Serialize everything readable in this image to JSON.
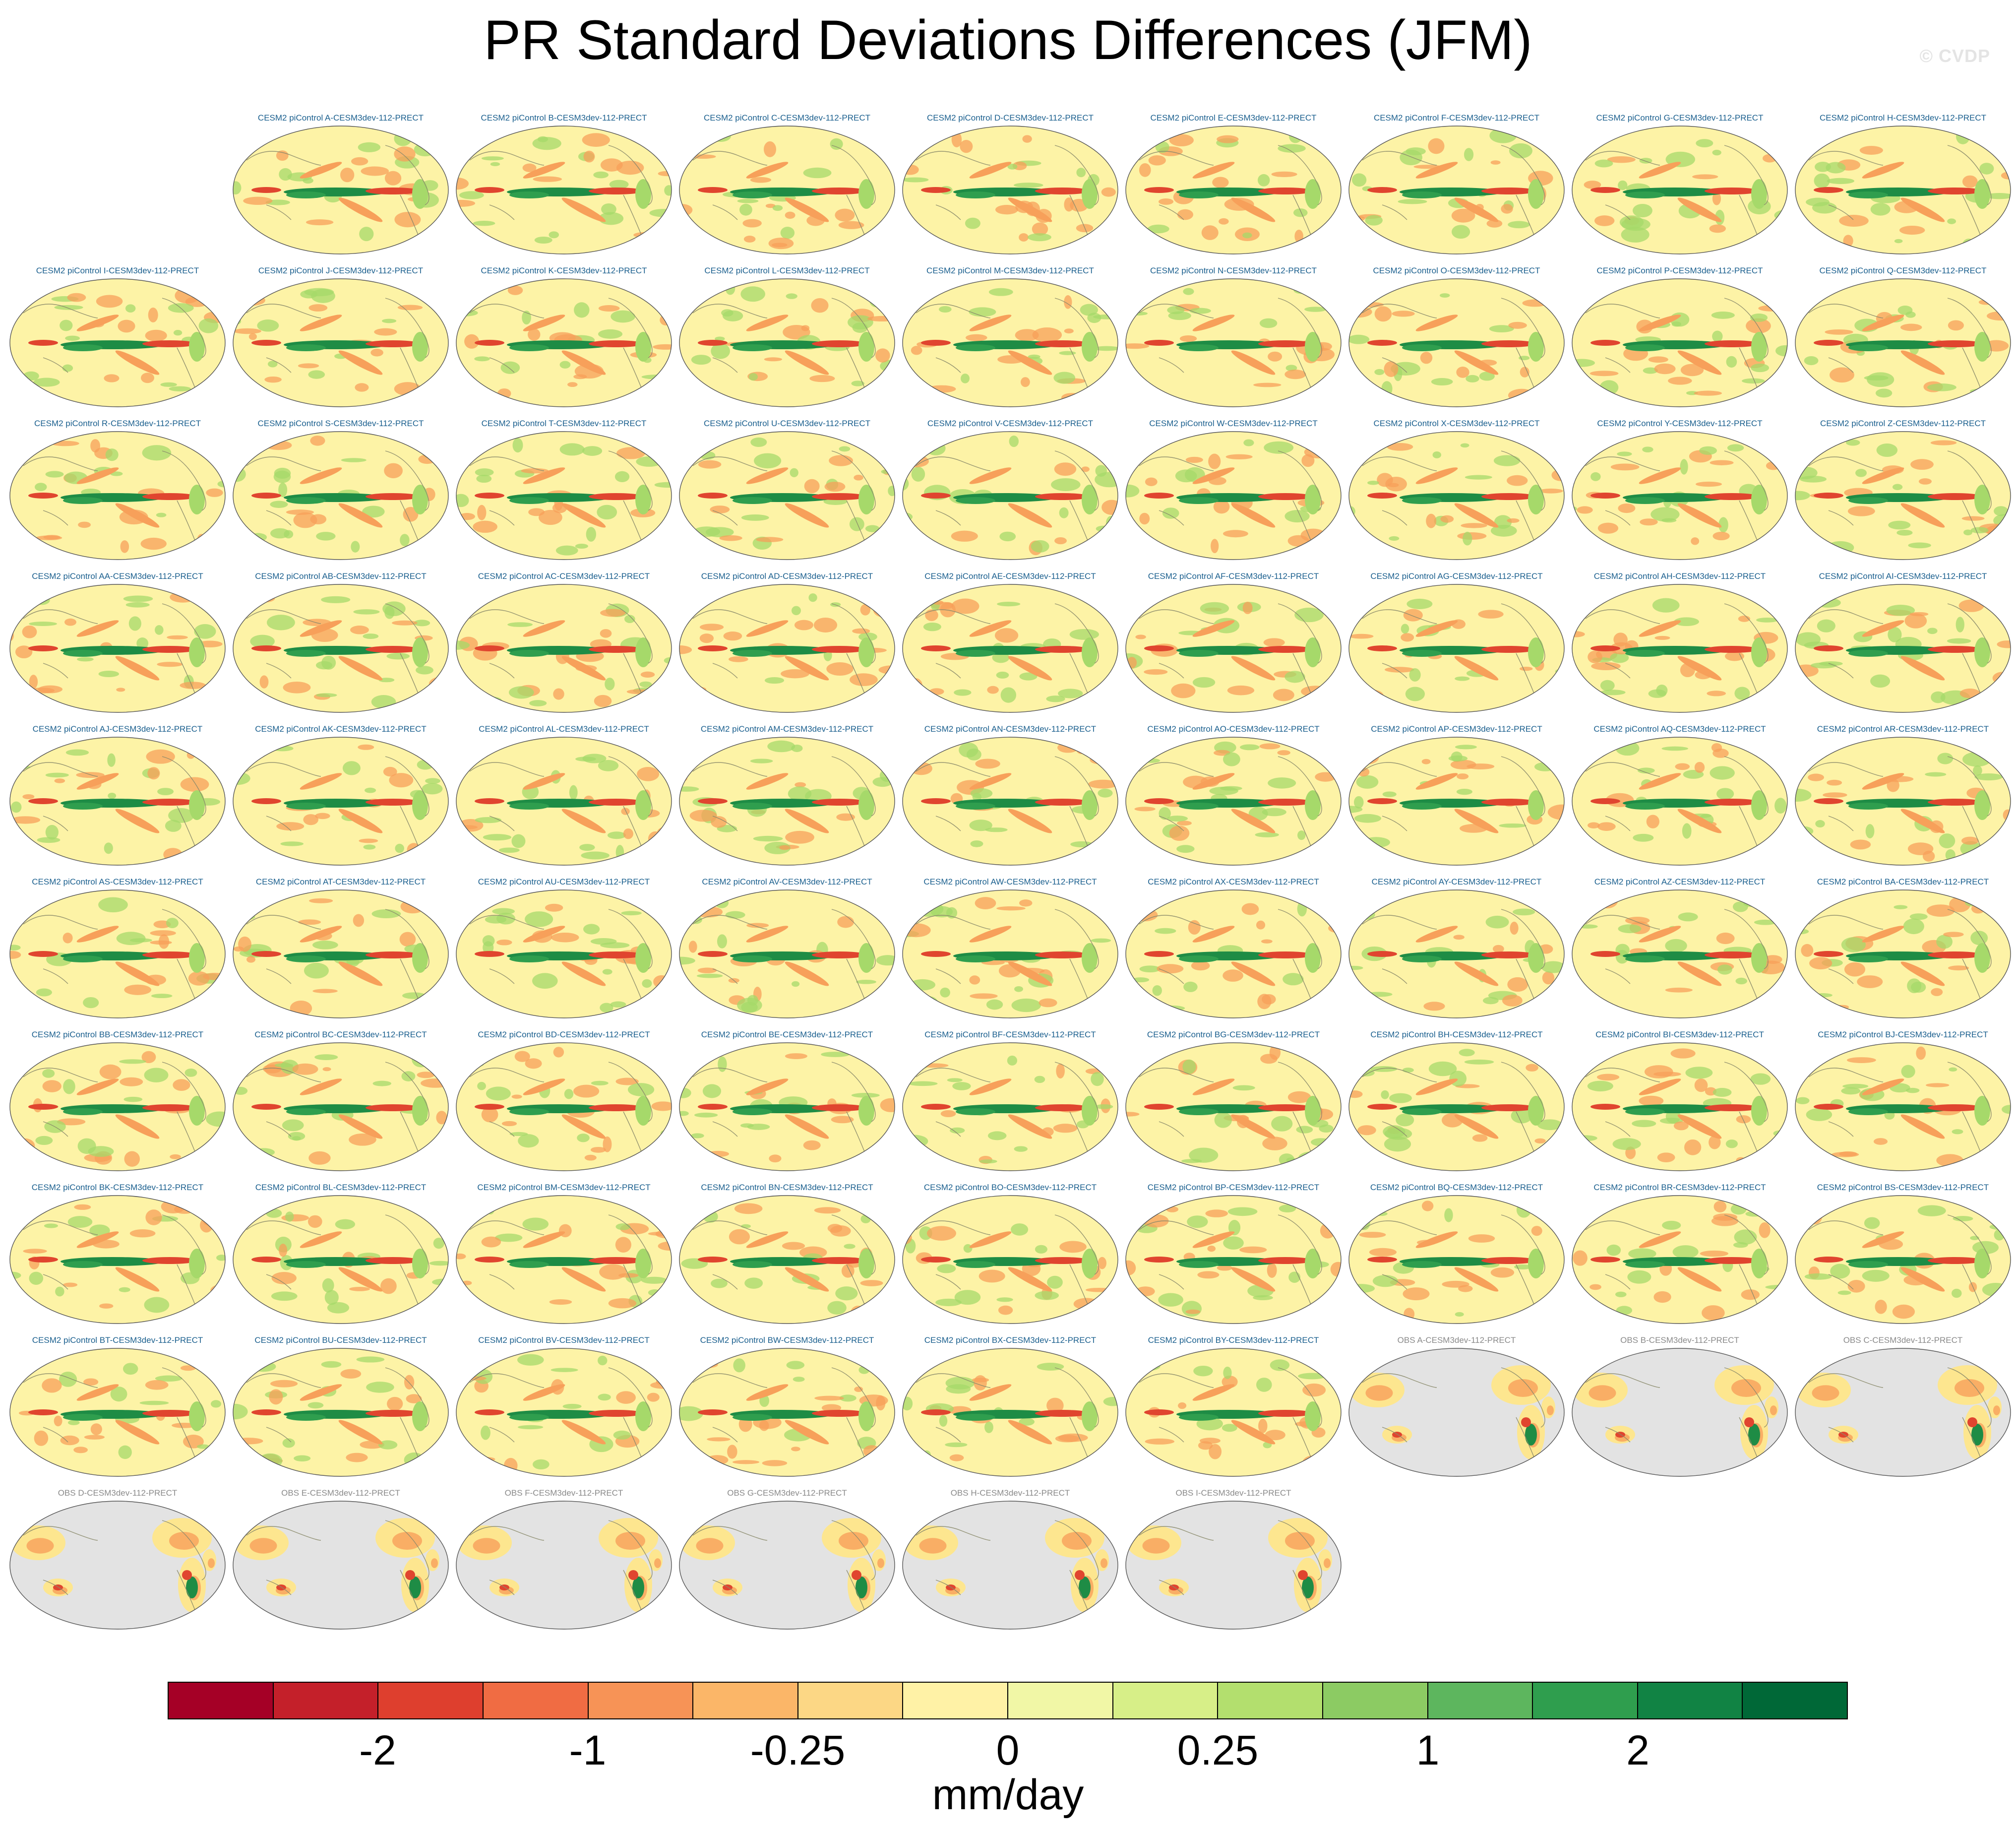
{
  "title": "PR Standard Deviations Differences (JFM)",
  "watermark": "© CVDP",
  "panels": [
    {
      "label": "CESM2 piControl A-CESM3dev-112-PRECT",
      "kind": "model"
    },
    {
      "label": "CESM2 piControl B-CESM3dev-112-PRECT",
      "kind": "model"
    },
    {
      "label": "CESM2 piControl C-CESM3dev-112-PRECT",
      "kind": "model"
    },
    {
      "label": "CESM2 piControl D-CESM3dev-112-PRECT",
      "kind": "model"
    },
    {
      "label": "CESM2 piControl E-CESM3dev-112-PRECT",
      "kind": "model"
    },
    {
      "label": "CESM2 piControl F-CESM3dev-112-PRECT",
      "kind": "model"
    },
    {
      "label": "CESM2 piControl G-CESM3dev-112-PRECT",
      "kind": "model"
    },
    {
      "label": "CESM2 piControl H-CESM3dev-112-PRECT",
      "kind": "model"
    },
    {
      "label": "CESM2 piControl I-CESM3dev-112-PRECT",
      "kind": "model"
    },
    {
      "label": "CESM2 piControl J-CESM3dev-112-PRECT",
      "kind": "model"
    },
    {
      "label": "CESM2 piControl K-CESM3dev-112-PRECT",
      "kind": "model"
    },
    {
      "label": "CESM2 piControl L-CESM3dev-112-PRECT",
      "kind": "model"
    },
    {
      "label": "CESM2 piControl M-CESM3dev-112-PRECT",
      "kind": "model"
    },
    {
      "label": "CESM2 piControl N-CESM3dev-112-PRECT",
      "kind": "model"
    },
    {
      "label": "CESM2 piControl O-CESM3dev-112-PRECT",
      "kind": "model"
    },
    {
      "label": "CESM2 piControl P-CESM3dev-112-PRECT",
      "kind": "model"
    },
    {
      "label": "CESM2 piControl Q-CESM3dev-112-PRECT",
      "kind": "model"
    },
    {
      "label": "CESM2 piControl R-CESM3dev-112-PRECT",
      "kind": "model"
    },
    {
      "label": "CESM2 piControl S-CESM3dev-112-PRECT",
      "kind": "model"
    },
    {
      "label": "CESM2 piControl T-CESM3dev-112-PRECT",
      "kind": "model"
    },
    {
      "label": "CESM2 piControl U-CESM3dev-112-PRECT",
      "kind": "model"
    },
    {
      "label": "CESM2 piControl V-CESM3dev-112-PRECT",
      "kind": "model"
    },
    {
      "label": "CESM2 piControl W-CESM3dev-112-PRECT",
      "kind": "model"
    },
    {
      "label": "CESM2 piControl X-CESM3dev-112-PRECT",
      "kind": "model"
    },
    {
      "label": "CESM2 piControl Y-CESM3dev-112-PRECT",
      "kind": "model"
    },
    {
      "label": "CESM2 piControl Z-CESM3dev-112-PRECT",
      "kind": "model"
    },
    {
      "label": "CESM2 piControl AA-CESM3dev-112-PRECT",
      "kind": "model"
    },
    {
      "label": "CESM2 piControl AB-CESM3dev-112-PRECT",
      "kind": "model"
    },
    {
      "label": "CESM2 piControl AC-CESM3dev-112-PRECT",
      "kind": "model"
    },
    {
      "label": "CESM2 piControl AD-CESM3dev-112-PRECT",
      "kind": "model"
    },
    {
      "label": "CESM2 piControl AE-CESM3dev-112-PRECT",
      "kind": "model"
    },
    {
      "label": "CESM2 piControl AF-CESM3dev-112-PRECT",
      "kind": "model"
    },
    {
      "label": "CESM2 piControl AG-CESM3dev-112-PRECT",
      "kind": "model"
    },
    {
      "label": "CESM2 piControl AH-CESM3dev-112-PRECT",
      "kind": "model"
    },
    {
      "label": "CESM2 piControl AI-CESM3dev-112-PRECT",
      "kind": "model"
    },
    {
      "label": "CESM2 piControl AJ-CESM3dev-112-PRECT",
      "kind": "model"
    },
    {
      "label": "CESM2 piControl AK-CESM3dev-112-PRECT",
      "kind": "model"
    },
    {
      "label": "CESM2 piControl AL-CESM3dev-112-PRECT",
      "kind": "model"
    },
    {
      "label": "CESM2 piControl AM-CESM3dev-112-PRECT",
      "kind": "model"
    },
    {
      "label": "CESM2 piControl AN-CESM3dev-112-PRECT",
      "kind": "model"
    },
    {
      "label": "CESM2 piControl AO-CESM3dev-112-PRECT",
      "kind": "model"
    },
    {
      "label": "CESM2 piControl AP-CESM3dev-112-PRECT",
      "kind": "model"
    },
    {
      "label": "CESM2 piControl AQ-CESM3dev-112-PRECT",
      "kind": "model"
    },
    {
      "label": "CESM2 piControl AR-CESM3dev-112-PRECT",
      "kind": "model"
    },
    {
      "label": "CESM2 piControl AS-CESM3dev-112-PRECT",
      "kind": "model"
    },
    {
      "label": "CESM2 piControl AT-CESM3dev-112-PRECT",
      "kind": "model"
    },
    {
      "label": "CESM2 piControl AU-CESM3dev-112-PRECT",
      "kind": "model"
    },
    {
      "label": "CESM2 piControl AV-CESM3dev-112-PRECT",
      "kind": "model"
    },
    {
      "label": "CESM2 piControl AW-CESM3dev-112-PRECT",
      "kind": "model"
    },
    {
      "label": "CESM2 piControl AX-CESM3dev-112-PRECT",
      "kind": "model"
    },
    {
      "label": "CESM2 piControl AY-CESM3dev-112-PRECT",
      "kind": "model"
    },
    {
      "label": "CESM2 piControl AZ-CESM3dev-112-PRECT",
      "kind": "model"
    },
    {
      "label": "CESM2 piControl BA-CESM3dev-112-PRECT",
      "kind": "model"
    },
    {
      "label": "CESM2 piControl BB-CESM3dev-112-PRECT",
      "kind": "model"
    },
    {
      "label": "CESM2 piControl BC-CESM3dev-112-PRECT",
      "kind": "model"
    },
    {
      "label": "CESM2 piControl BD-CESM3dev-112-PRECT",
      "kind": "model"
    },
    {
      "label": "CESM2 piControl BE-CESM3dev-112-PRECT",
      "kind": "model"
    },
    {
      "label": "CESM2 piControl BF-CESM3dev-112-PRECT",
      "kind": "model"
    },
    {
      "label": "CESM2 piControl BG-CESM3dev-112-PRECT",
      "kind": "model"
    },
    {
      "label": "CESM2 piControl BH-CESM3dev-112-PRECT",
      "kind": "model"
    },
    {
      "label": "CESM2 piControl BI-CESM3dev-112-PRECT",
      "kind": "model"
    },
    {
      "label": "CESM2 piControl BJ-CESM3dev-112-PRECT",
      "kind": "model"
    },
    {
      "label": "CESM2 piControl BK-CESM3dev-112-PRECT",
      "kind": "model"
    },
    {
      "label": "CESM2 piControl BL-CESM3dev-112-PRECT",
      "kind": "model"
    },
    {
      "label": "CESM2 piControl BM-CESM3dev-112-PRECT",
      "kind": "model"
    },
    {
      "label": "CESM2 piControl BN-CESM3dev-112-PRECT",
      "kind": "model"
    },
    {
      "label": "CESM2 piControl BO-CESM3dev-112-PRECT",
      "kind": "model"
    },
    {
      "label": "CESM2 piControl BP-CESM3dev-112-PRECT",
      "kind": "model"
    },
    {
      "label": "CESM2 piControl BQ-CESM3dev-112-PRECT",
      "kind": "model"
    },
    {
      "label": "CESM2 piControl BR-CESM3dev-112-PRECT",
      "kind": "model"
    },
    {
      "label": "CESM2 piControl BS-CESM3dev-112-PRECT",
      "kind": "model"
    },
    {
      "label": "CESM2 piControl BT-CESM3dev-112-PRECT",
      "kind": "model"
    },
    {
      "label": "CESM2 piControl BU-CESM3dev-112-PRECT",
      "kind": "model"
    },
    {
      "label": "CESM2 piControl BV-CESM3dev-112-PRECT",
      "kind": "model"
    },
    {
      "label": "CESM2 piControl BW-CESM3dev-112-PRECT",
      "kind": "model"
    },
    {
      "label": "CESM2 piControl BX-CESM3dev-112-PRECT",
      "kind": "model"
    },
    {
      "label": "CESM2 piControl BY-CESM3dev-112-PRECT",
      "kind": "model"
    },
    {
      "label": "OBS A-CESM3dev-112-PRECT",
      "kind": "obs"
    },
    {
      "label": "OBS B-CESM3dev-112-PRECT",
      "kind": "obs"
    },
    {
      "label": "OBS C-CESM3dev-112-PRECT",
      "kind": "obs"
    },
    {
      "label": "OBS D-CESM3dev-112-PRECT",
      "kind": "obs"
    },
    {
      "label": "OBS E-CESM3dev-112-PRECT",
      "kind": "obs"
    },
    {
      "label": "OBS F-CESM3dev-112-PRECT",
      "kind": "obs"
    },
    {
      "label": "OBS G-CESM3dev-112-PRECT",
      "kind": "obs"
    },
    {
      "label": "OBS H-CESM3dev-112-PRECT",
      "kind": "obs"
    },
    {
      "label": "OBS I-CESM3dev-112-PRECT",
      "kind": "obs"
    }
  ],
  "colorbar": {
    "colors": [
      "#a50026",
      "#c4202a",
      "#de3f2e",
      "#f06c43",
      "#f79356",
      "#fbb668",
      "#fcd785",
      "#fff2a6",
      "#f1f7a6",
      "#d7ef88",
      "#b3df6e",
      "#8ccb63",
      "#5db65e",
      "#2f9e4e",
      "#118344",
      "#006837"
    ],
    "labels": [
      "-2",
      "-1",
      "-0.25",
      "0",
      "0.25",
      "1",
      "2"
    ],
    "label_box_edges": [
      2,
      4,
      6,
      8,
      10,
      12,
      14
    ],
    "units": "mm/day"
  },
  "map_colors": {
    "model_background": "#fdf3a6",
    "obs_background": "#e3e3e3",
    "green_strong": "#1e8c45",
    "green_light": "#a6d96a",
    "red_strong": "#e0452f",
    "orange": "#f7a05a",
    "coast": "#8a8a6a"
  }
}
